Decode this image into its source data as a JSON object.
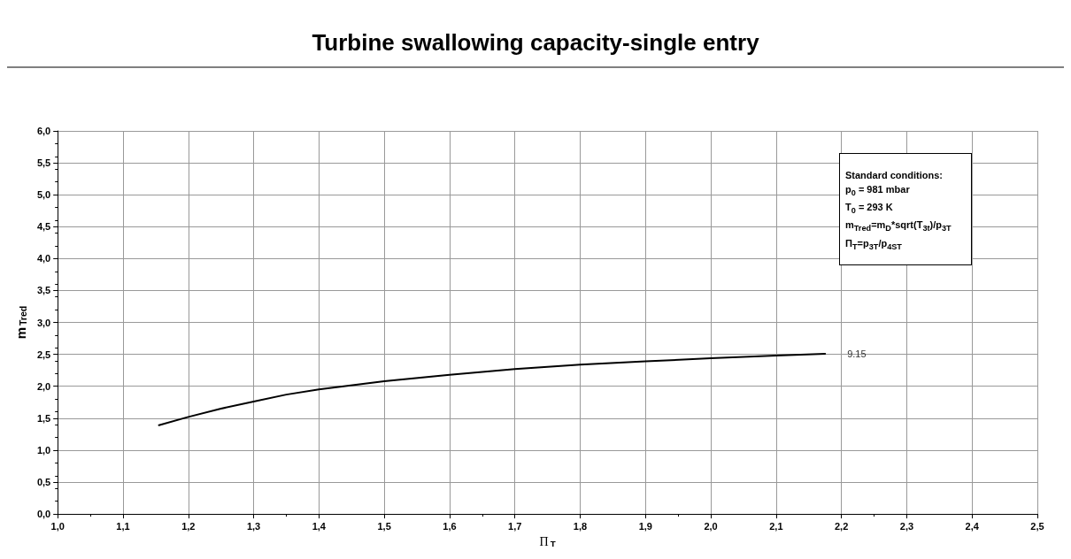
{
  "chart_data": {
    "type": "line",
    "title": "Turbine swallowing capacity-single entry",
    "xlabel": "Π$_{T}$",
    "ylabel": "m$_{Tred}$",
    "x": [
      1.155,
      1.2,
      1.25,
      1.3,
      1.35,
      1.4,
      1.5,
      1.6,
      1.7,
      1.8,
      1.9,
      2.0,
      2.1,
      2.175
    ],
    "series": [
      {
        "name": "9.15",
        "color": "#000000",
        "values": [
          1.39,
          1.52,
          1.65,
          1.76,
          1.87,
          1.95,
          2.08,
          2.18,
          2.27,
          2.34,
          2.39,
          2.44,
          2.48,
          2.51
        ]
      }
    ],
    "xlim": [
      1.0,
      2.5
    ],
    "xticks": [
      {
        "value": 1.0,
        "label": "1,0"
      },
      {
        "value": 1.1,
        "label": "1,1"
      },
      {
        "value": 1.2,
        "label": "1,2"
      },
      {
        "value": 1.3,
        "label": "1,3"
      },
      {
        "value": 1.4,
        "label": "1,4"
      },
      {
        "value": 1.5,
        "label": "1,5"
      },
      {
        "value": 1.6,
        "label": "1,6"
      },
      {
        "value": 1.7,
        "label": "1,7"
      },
      {
        "value": 1.8,
        "label": "1,8"
      },
      {
        "value": 1.9,
        "label": "1,9"
      },
      {
        "value": 2.0,
        "label": "2,0"
      },
      {
        "value": 2.1,
        "label": "2,1"
      },
      {
        "value": 2.2,
        "label": "2,2"
      },
      {
        "value": 2.3,
        "label": "2,3"
      },
      {
        "value": 2.4,
        "label": "2,4"
      },
      {
        "value": 2.5,
        "label": "2,5"
      }
    ],
    "ylim": [
      0,
      6
    ],
    "yticks": [
      {
        "value": 0,
        "label": "0,0"
      },
      {
        "value": 0.5,
        "label": "0,5"
      },
      {
        "value": 1,
        "label": "1,0"
      },
      {
        "value": 1.5,
        "label": "1,5"
      },
      {
        "value": 2,
        "label": "2,0"
      },
      {
        "value": 2.5,
        "label": "2,5"
      },
      {
        "value": 3,
        "label": "3,0"
      },
      {
        "value": 3.5,
        "label": "3,5"
      },
      {
        "value": 4,
        "label": "4,0"
      },
      {
        "value": 4.5,
        "label": "4,5"
      },
      {
        "value": 5,
        "label": "5,0"
      },
      {
        "value": 5.5,
        "label": "5,5"
      },
      {
        "value": 6,
        "label": "6,0"
      }
    ],
    "grid": true,
    "legend": false,
    "marker": "none",
    "line_style": "solid",
    "annotations": [
      "Standard conditions:",
      "p$_{0}$ = 981 mbar",
      "T$_{0}$ = 293 K",
      "m$_{Tred}$=m$_{D}$*sqrt(T$_{3t}$)/p$_{3T}$",
      "Π$_{T}$=p$_{3T}$/p$_{4ST}$"
    ]
  }
}
